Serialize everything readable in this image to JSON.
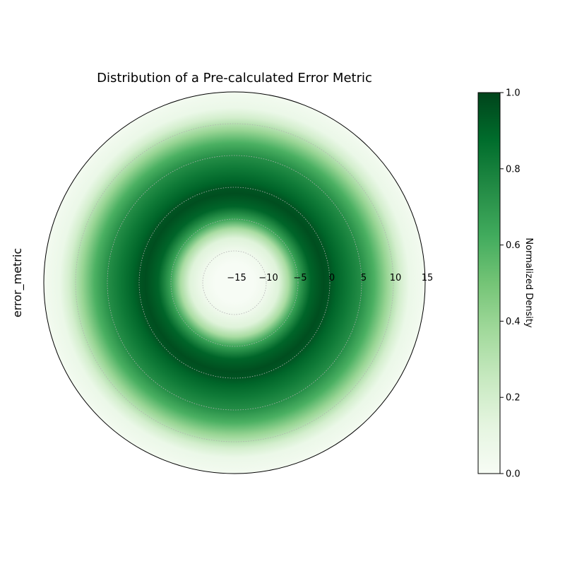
{
  "chart_data": {
    "type": "heatmap",
    "projection": "polar",
    "title": "Distribution of a Pre-calculated Error Metric",
    "ylabel": "error_metric",
    "radial_axis": {
      "range": [
        -15,
        15
      ],
      "ticks": [
        -15,
        -10,
        -5,
        0,
        5,
        10,
        15
      ]
    },
    "density_profile": {
      "r": [
        -15,
        -12,
        -10,
        -8,
        -6.5,
        -5,
        -3,
        -1,
        0,
        1,
        3,
        5,
        7,
        9,
        11,
        12.5,
        15
      ],
      "value": [
        0.0,
        0.0,
        0.05,
        0.15,
        0.35,
        0.65,
        0.9,
        0.97,
        0.95,
        0.9,
        0.82,
        0.74,
        0.6,
        0.4,
        0.2,
        0.08,
        0.03
      ]
    },
    "colorbar": {
      "label": "Normalized Density",
      "range": [
        0,
        1
      ],
      "ticks": [
        "0.0",
        "0.2",
        "0.4",
        "0.6",
        "0.8",
        "1.0"
      ],
      "colormap": [
        "#f7fcf5",
        "#e5f5e0",
        "#c7e9c0",
        "#a1d99b",
        "#74c476",
        "#41ab5d",
        "#238b45",
        "#006d2c",
        "#00441b"
      ]
    },
    "grid": true
  }
}
